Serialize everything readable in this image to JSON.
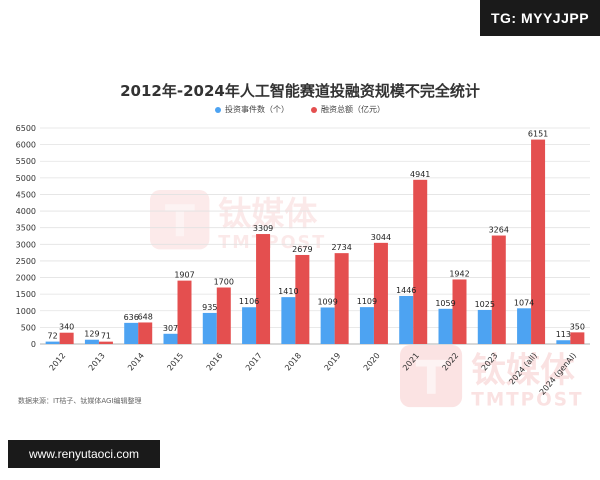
{
  "badges": {
    "top_right": "TG: MYYJJPP",
    "bottom_left": "www.renyutaoci.com"
  },
  "watermark": {
    "brand_cn": "钛媒体",
    "brand_en": "TMTPOST"
  },
  "chart_data": {
    "type": "bar",
    "title": "2012年-2024年人工智能赛道投融资规模不完全统计",
    "categories": [
      "2012",
      "2013",
      "2014",
      "2015",
      "2016",
      "2017",
      "2018",
      "2019",
      "2020",
      "2021",
      "2022",
      "2023",
      "2024 (all)",
      "2024 (genAI)"
    ],
    "series": [
      {
        "name": "投资事件数（个）",
        "color": "#4da3f2",
        "values": [
          72,
          129,
          636,
          307,
          935,
          1106,
          1410,
          1099,
          1109,
          1446,
          1059,
          1025,
          1074,
          113
        ]
      },
      {
        "name": "融资总额（亿元）",
        "color": "#e44f4f",
        "values": [
          340,
          71,
          648,
          1907,
          1700,
          3309,
          2679,
          2734,
          3044,
          4941,
          1942,
          3264,
          6151,
          350
        ]
      }
    ],
    "ylim": [
      0,
      6500
    ],
    "yticks": [
      0,
      500,
      1000,
      1500,
      2000,
      2500,
      3000,
      3500,
      4000,
      4500,
      5000,
      5500,
      6000,
      6500
    ],
    "grid": true,
    "legend_position": "top-center",
    "source": "数据来源：IT桔子、钛媒体AGI编辑整理"
  }
}
